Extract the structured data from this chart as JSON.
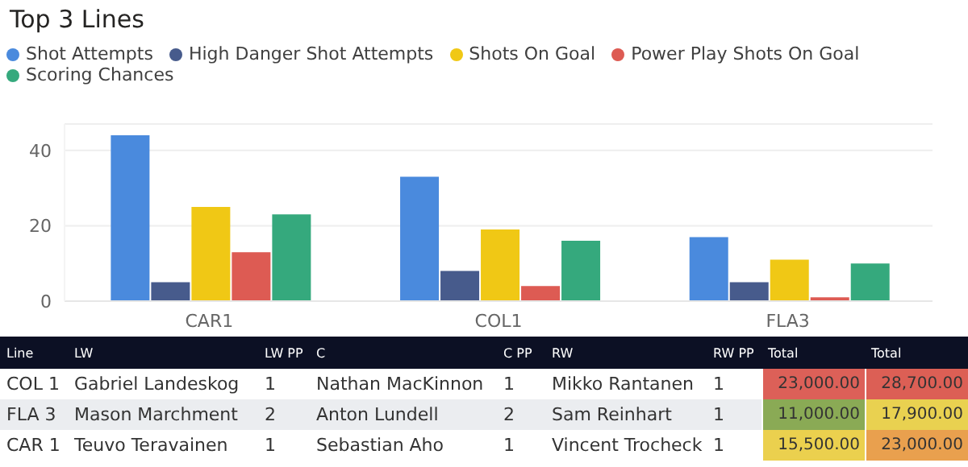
{
  "chart_data": [
    {
      "type": "bar",
      "title": "Top 3 Lines",
      "categories": [
        "CAR1",
        "COL1",
        "FLA3"
      ],
      "series": [
        {
          "name": "Shot Attempts",
          "color": "#4a8add",
          "values": [
            44,
            33,
            17
          ]
        },
        {
          "name": "High Danger Shot Attempts",
          "color": "#475b8c",
          "values": [
            5,
            8,
            5
          ]
        },
        {
          "name": "Shots On Goal",
          "color": "#f0c815",
          "values": [
            25,
            19,
            11
          ]
        },
        {
          "name": "Power Play Shots On Goal",
          "color": "#dd5b53",
          "values": [
            13,
            4,
            1
          ]
        },
        {
          "name": "Scoring Chances",
          "color": "#35a97d",
          "values": [
            23,
            16,
            10
          ]
        }
      ],
      "ylim": [
        0,
        47
      ],
      "yticks": [
        0,
        20,
        40
      ],
      "grid": "y",
      "legend": "top left"
    },
    {
      "type": "other",
      "categories": [
        "Line",
        "LW",
        "LW PP",
        "C",
        "C PP",
        "RW",
        "RW PP",
        "Total",
        "Total"
      ],
      "cell_labels": [
        [
          "COL 1",
          "Gabriel Landeskog",
          "1",
          "Nathan MacKinnon",
          "1",
          "Mikko Rantanen",
          "1",
          "23,000.00",
          "28,700.00"
        ],
        [
          "FLA 3",
          "Mason Marchment",
          "2",
          "Anton Lundell",
          "2",
          "Sam Reinhart",
          "1",
          "11,000.00",
          "17,900.00"
        ],
        [
          "CAR 1",
          "Teuvo Teravainen",
          "1",
          "Sebastian Aho",
          "1",
          "Vincent Trocheck",
          "1",
          "15,500.00",
          "23,000.00"
        ]
      ],
      "colors": [
        [
          null,
          null,
          null,
          null,
          null,
          null,
          null,
          "#dc6058",
          "#dc5f55"
        ],
        [
          null,
          null,
          null,
          null,
          null,
          null,
          null,
          "#8aaa55",
          "#e9d150"
        ],
        [
          null,
          null,
          null,
          null,
          null,
          null,
          null,
          "#ebd04e",
          "#e9a04e"
        ]
      ]
    }
  ]
}
